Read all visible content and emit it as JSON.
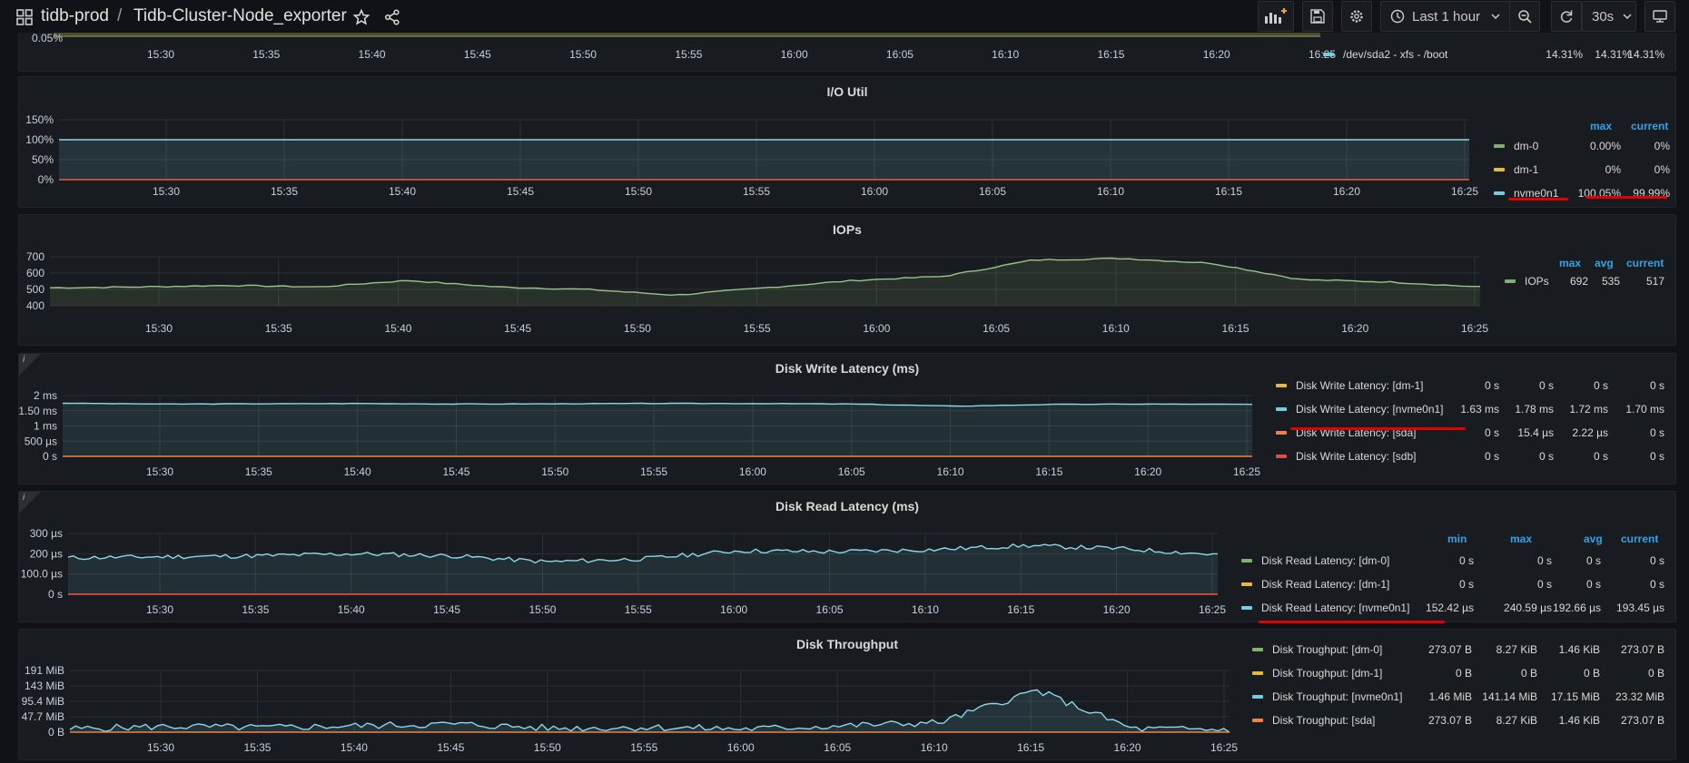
{
  "topbar": {
    "org": "tidb-prod",
    "sep": "/",
    "dashboard": "Tidb-Cluster-Node_exporter",
    "time_range": "Last 1 hour",
    "refresh": "30s"
  },
  "time_ticks": [
    "15:30",
    "15:35",
    "15:40",
    "15:45",
    "15:50",
    "15:55",
    "16:00",
    "16:05",
    "16:10",
    "16:15",
    "16:20",
    "16:25"
  ],
  "top_partial": {
    "y_label": "0.05%",
    "legend": {
      "name": "/dev/sda2 - xfs - /boot",
      "v1": "14.31%",
      "v2": "14.31%",
      "v3": "14.31%",
      "color": "#6ed0e0"
    }
  },
  "io_util": {
    "title": "I/O Util",
    "y_ticks": [
      "150%",
      "100%",
      "50%",
      "0%"
    ],
    "headers": [
      "max",
      "current"
    ],
    "legend": [
      {
        "name": "dm-0",
        "max": "0.00%",
        "current": "0%",
        "color": "#7eb26d"
      },
      {
        "name": "dm-1",
        "max": "0%",
        "current": "0%",
        "color": "#eab839"
      },
      {
        "name": "nvme0n1",
        "max": "100.05%",
        "current": "99.99%",
        "color": "#6ed0e0"
      }
    ]
  },
  "iops": {
    "title": "IOPs",
    "y_ticks": [
      "700",
      "600",
      "500",
      "400"
    ],
    "headers": [
      "max",
      "avg",
      "current"
    ],
    "legend": [
      {
        "name": "IOPs",
        "max": "692",
        "avg": "535",
        "current": "517",
        "color": "#7eb26d"
      }
    ]
  },
  "write_latency": {
    "title": "Disk Write Latency (ms)",
    "info": "i",
    "y_ticks": [
      "2 ms",
      "1.50 ms",
      "1 ms",
      "500 µs",
      "0 s"
    ],
    "legend": [
      {
        "name": "Disk Write Latency: [dm-1]",
        "v1": "0 s",
        "v2": "0 s",
        "v3": "0 s",
        "v4": "0 s",
        "color": "#eab839"
      },
      {
        "name": "Disk Write Latency: [nvme0n1]",
        "v1": "1.63 ms",
        "v2": "1.78 ms",
        "v3": "1.72 ms",
        "v4": "1.70 ms",
        "color": "#6ed0e0"
      },
      {
        "name": "Disk Write Latency: [sda]",
        "v1": "0 s",
        "v2": "15.4 µs",
        "v3": "2.22 µs",
        "v4": "0 s",
        "color": "#ef843c"
      },
      {
        "name": "Disk Write Latency: [sdb]",
        "v1": "0 s",
        "v2": "0 s",
        "v3": "0 s",
        "v4": "0 s",
        "color": "#e24d42"
      }
    ]
  },
  "read_latency": {
    "title": "Disk Read Latency (ms)",
    "info": "i",
    "y_ticks": [
      "300 µs",
      "200 µs",
      "100.0 µs",
      "0 s"
    ],
    "headers": [
      "min",
      "max",
      "avg",
      "current"
    ],
    "legend": [
      {
        "name": "Disk Read Latency: [dm-0]",
        "v1": "0 s",
        "v2": "0 s",
        "v3": "0 s",
        "v4": "0 s",
        "color": "#7eb26d"
      },
      {
        "name": "Disk Read Latency: [dm-1]",
        "v1": "0 s",
        "v2": "0 s",
        "v3": "0 s",
        "v4": "0 s",
        "color": "#eab839"
      },
      {
        "name": "Disk Read Latency: [nvme0n1]",
        "v1": "152.42 µs",
        "v2": "240.59 µs",
        "v3": "192.66 µs",
        "v4": "193.45 µs",
        "color": "#6ed0e0"
      }
    ]
  },
  "throughput": {
    "title": "Disk Throughput",
    "y_ticks": [
      "191 MiB",
      "143 MiB",
      "95.4 MiB",
      "47.7 MiB",
      "0 B"
    ],
    "legend": [
      {
        "name": "Disk Troughput: [dm-0]",
        "v1": "273.07 B",
        "v2": "8.27 KiB",
        "v3": "1.46 KiB",
        "v4": "273.07 B",
        "color": "#7eb26d"
      },
      {
        "name": "Disk Troughput: [dm-1]",
        "v1": "0 B",
        "v2": "0 B",
        "v3": "0 B",
        "v4": "0 B",
        "color": "#eab839"
      },
      {
        "name": "Disk Troughput: [nvme0n1]",
        "v1": "1.46 MiB",
        "v2": "141.14 MiB",
        "v3": "17.15 MiB",
        "v4": "23.32 MiB",
        "color": "#6ed0e0"
      },
      {
        "name": "Disk Troughput: [sda]",
        "v1": "273.07 B",
        "v2": "8.27 KiB",
        "v3": "1.46 KiB",
        "v4": "273.07 B",
        "color": "#ef843c"
      }
    ]
  },
  "chart_data": [
    {
      "type": "line",
      "title": "I/O Util",
      "ylim": [
        0,
        150
      ],
      "series": [
        {
          "name": "nvme0n1",
          "values": [
            100,
            100,
            100,
            100,
            100,
            100,
            100,
            100,
            100,
            100,
            100,
            100,
            100
          ]
        },
        {
          "name": "dm-0",
          "values": [
            0,
            0,
            0,
            0,
            0,
            0,
            0,
            0,
            0,
            0,
            0,
            0,
            0
          ]
        }
      ]
    },
    {
      "type": "line",
      "title": "IOPs",
      "ylim": [
        400,
        700
      ],
      "x": [
        "15:26",
        "15:30",
        "15:35",
        "15:40",
        "15:45",
        "15:50",
        "15:55",
        "16:00",
        "16:05",
        "16:10",
        "16:13",
        "16:15",
        "16:16",
        "16:18",
        "16:20",
        "16:22",
        "16:25"
      ],
      "series": [
        {
          "name": "IOPs",
          "values": [
            510,
            515,
            525,
            515,
            555,
            515,
            500,
            465,
            510,
            555,
            580,
            680,
            690,
            660,
            560,
            545,
            515
          ]
        }
      ]
    },
    {
      "type": "line",
      "title": "Disk Write Latency (ms)",
      "ylim": [
        0,
        2
      ],
      "series": [
        {
          "name": "Disk Write Latency: [nvme0n1]",
          "values": [
            1.75,
            1.72,
            1.73,
            1.74,
            1.72,
            1.73,
            1.74,
            1.74,
            1.72,
            1.65,
            1.71,
            1.72,
            1.71
          ]
        }
      ]
    },
    {
      "type": "line",
      "title": "Disk Read Latency (ms)",
      "ylim": [
        0,
        300
      ],
      "series": [
        {
          "name": "Disk Read Latency: [nvme0n1]",
          "values": [
            180,
            185,
            190,
            200,
            190,
            160,
            175,
            215,
            210,
            220,
            240,
            225,
            195
          ]
        }
      ]
    },
    {
      "type": "line",
      "title": "Disk Throughput",
      "ylim": [
        0,
        191
      ],
      "series": [
        {
          "name": "Disk Troughput: [nvme0n1]",
          "values": [
            10,
            18,
            14,
            20,
            25,
            12,
            15,
            10,
            20,
            30,
            130,
            10,
            8
          ]
        }
      ]
    }
  ]
}
